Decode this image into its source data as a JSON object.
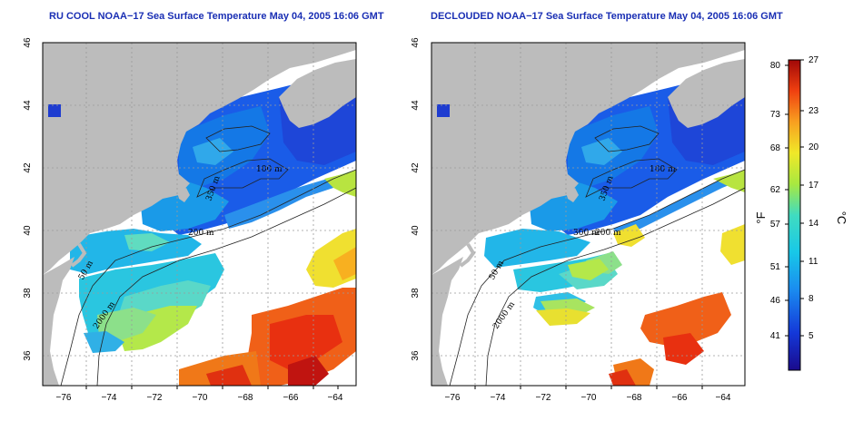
{
  "panels": [
    {
      "id": "rucool",
      "title": "RU COOL NOAA−17 Sea Surface Temperature May 04, 2005 16:06 GMT",
      "contour_labels": [
        "50 m",
        "2000 m",
        "200 m",
        "100 m",
        "350 m",
        "200 m"
      ]
    },
    {
      "id": "declouded",
      "title": "DECLOUDED NOAA−17 Sea Surface Temperature May 04, 2005 16:06 GMT",
      "contour_labels": [
        "50 m",
        "2000 m",
        "200 m",
        "100 m",
        "350 m",
        "300 m"
      ]
    }
  ],
  "axes": {
    "x_ticks": [
      "−76",
      "−74",
      "−72",
      "−70",
      "−68",
      "−66",
      "−64"
    ],
    "y_ticks": [
      "46",
      "44",
      "42",
      "40",
      "38",
      "36"
    ]
  },
  "colorbar": {
    "fahrenheit_label": "°F",
    "celsius_label": "°C",
    "fahrenheit_ticks": [
      "80",
      "73",
      "68",
      "62",
      "57",
      "51",
      "46",
      "41"
    ],
    "celsius_ticks": [
      "27",
      "23",
      "20",
      "17",
      "14",
      "11",
      "8",
      "5"
    ]
  },
  "colors": {
    "land": "#bcbcbc",
    "title": "#1a2fb4",
    "grid": "#9a9a9a"
  }
}
